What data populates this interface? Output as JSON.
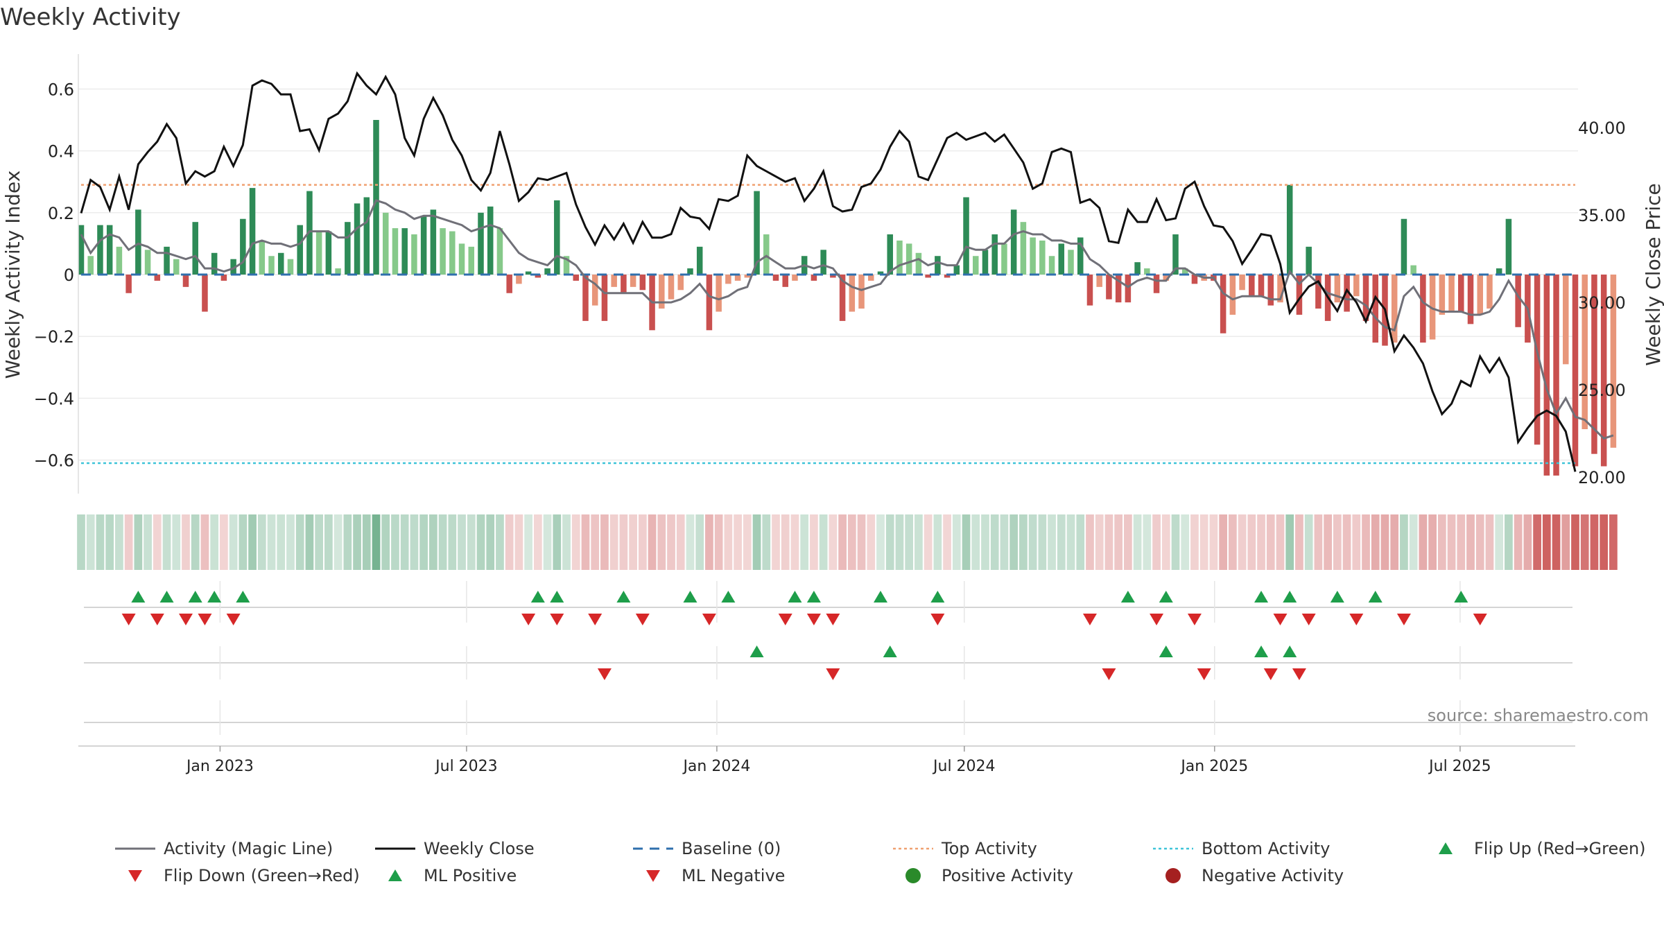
{
  "chart_data": {
    "type": "bar",
    "title": "Weekly Activity",
    "ylabel": "Weekly Activity Index",
    "y2label": "Weekly Close Price",
    "ylim": [
      -0.72,
      0.72
    ],
    "y2lim": [
      19.5,
      44.5
    ],
    "yticks": [
      0.6,
      0.4,
      0.2,
      0,
      -0.2,
      -0.4,
      -0.6
    ],
    "ytick_labels": [
      "0.6",
      "0.4",
      "0.2",
      "0",
      "−0.2",
      "−0.4",
      "−0.6"
    ],
    "y2ticks": [
      40,
      35,
      30,
      25,
      20
    ],
    "y2tick_labels": [
      "40.00",
      "35.00",
      "30.00",
      "25.00",
      "20.00"
    ],
    "x_start_week": 0,
    "x_end_week": 157,
    "xticks": [
      {
        "label": "Jan 2023",
        "week": 14.6
      },
      {
        "label": "Jul 2023",
        "week": 40.5
      },
      {
        "label": "Jan 2024",
        "week": 66.8
      },
      {
        "label": "Jul 2024",
        "week": 92.8
      },
      {
        "label": "Jan 2025",
        "week": 119.1
      },
      {
        "label": "Jul 2025",
        "week": 144.9
      }
    ],
    "top_activity": 0.29,
    "bottom_activity": -0.61,
    "baseline": 0,
    "activity": [
      0.16,
      0.06,
      0.16,
      0.16,
      0.09,
      -0.06,
      0.21,
      0.08,
      -0.02,
      0.09,
      0.05,
      -0.04,
      0.17,
      -0.12,
      0.07,
      -0.02,
      0.05,
      0.18,
      0.28,
      0.11,
      0.06,
      0.07,
      0.05,
      0.16,
      0.27,
      0.14,
      0.14,
      0.02,
      0.17,
      0.23,
      0.25,
      0.5,
      0.2,
      0.15,
      0.15,
      0.13,
      0.19,
      0.21,
      0.15,
      0.14,
      0.1,
      0.09,
      0.2,
      0.22,
      0.15,
      -0.06,
      -0.03,
      0.01,
      -0.01,
      0.02,
      0.24,
      0.06,
      -0.02,
      -0.15,
      -0.1,
      -0.15,
      -0.04,
      -0.06,
      -0.04,
      -0.05,
      -0.18,
      -0.11,
      -0.08,
      -0.05,
      0.02,
      0.09,
      -0.18,
      -0.12,
      -0.03,
      -0.02,
      -0.01,
      0.27,
      0.13,
      -0.02,
      -0.04,
      -0.02,
      0.06,
      -0.02,
      0.08,
      -0.01,
      -0.15,
      -0.12,
      -0.11,
      -0.02,
      0.01,
      0.13,
      0.11,
      0.1,
      0.07,
      -0.01,
      0.06,
      -0.01,
      0.03,
      0.25,
      0.06,
      0.08,
      0.13,
      0.1,
      0.21,
      0.17,
      0.12,
      0.11,
      0.06,
      0.1,
      0.08,
      0.12,
      -0.1,
      -0.04,
      -0.08,
      -0.09,
      -0.09,
      0.04,
      0.02,
      -0.06,
      -0.02,
      0.13,
      0.02,
      -0.03,
      -0.02,
      -0.02,
      -0.19,
      -0.13,
      -0.05,
      -0.07,
      -0.07,
      -0.1,
      -0.09,
      0.29,
      -0.13,
      0.09,
      -0.11,
      -0.15,
      -0.09,
      -0.12,
      -0.07,
      -0.15,
      -0.22,
      -0.23,
      -0.22,
      0.18,
      0.03,
      -0.22,
      -0.21,
      -0.13,
      -0.12,
      -0.12,
      -0.16,
      -0.13,
      -0.11,
      0.02,
      0.18,
      -0.17,
      -0.22,
      -0.55,
      -0.65,
      -0.65,
      -0.29,
      -0.62,
      -0.5,
      -0.58,
      -0.62,
      -0.56
    ],
    "weekly_close": [
      35.1,
      37.0,
      36.6,
      35.3,
      37.2,
      35.3,
      37.9,
      38.6,
      39.2,
      40.2,
      39.4,
      36.8,
      37.5,
      37.2,
      37.5,
      38.9,
      37.8,
      39.0,
      42.4,
      42.7,
      42.5,
      41.9,
      41.9,
      39.8,
      39.9,
      38.7,
      40.5,
      40.8,
      41.5,
      43.1,
      42.4,
      41.9,
      42.9,
      41.9,
      39.4,
      38.4,
      40.5,
      41.7,
      40.7,
      39.3,
      38.4,
      37.0,
      36.4,
      37.4,
      39.8,
      37.9,
      35.8,
      36.3,
      37.1,
      37.0,
      37.2,
      37.4,
      35.6,
      34.3,
      33.3,
      34.4,
      33.6,
      34.5,
      33.4,
      34.6,
      33.7,
      33.7,
      33.9,
      35.4,
      34.9,
      34.8,
      34.2,
      35.9,
      35.8,
      36.1,
      38.4,
      37.8,
      37.5,
      37.2,
      36.9,
      37.1,
      35.8,
      36.5,
      37.5,
      35.5,
      35.2,
      35.3,
      36.6,
      36.8,
      37.6,
      38.9,
      39.8,
      39.2,
      37.2,
      37.0,
      38.2,
      39.4,
      39.7,
      39.3,
      39.5,
      39.7,
      39.2,
      39.6,
      38.8,
      38.0,
      36.5,
      36.8,
      38.6,
      38.8,
      38.6,
      35.7,
      35.9,
      35.4,
      33.5,
      33.4,
      35.3,
      34.6,
      34.6,
      35.9,
      34.7,
      34.8,
      36.5,
      36.9,
      35.5,
      34.4,
      34.3,
      33.5,
      32.2,
      33.0,
      33.9,
      33.8,
      32.2,
      29.4,
      30.2,
      30.9,
      31.2,
      30.3,
      29.5,
      30.7,
      30.0,
      28.9,
      30.3,
      29.6,
      27.2,
      28.1,
      27.4,
      26.5,
      24.9,
      23.6,
      24.2,
      25.5,
      25.2,
      26.9,
      26.0,
      26.8,
      25.7,
      22.0,
      22.8,
      23.5,
      23.8,
      23.5,
      22.6,
      20.3
    ],
    "magic_line": [
      0.13,
      0.07,
      0.11,
      0.13,
      0.12,
      0.08,
      0.1,
      0.09,
      0.07,
      0.07,
      0.06,
      0.05,
      0.06,
      0.02,
      0.02,
      0.01,
      0.02,
      0.04,
      0.1,
      0.11,
      0.1,
      0.1,
      0.09,
      0.1,
      0.14,
      0.14,
      0.14,
      0.12,
      0.12,
      0.15,
      0.17,
      0.24,
      0.23,
      0.21,
      0.2,
      0.18,
      0.19,
      0.19,
      0.18,
      0.17,
      0.16,
      0.14,
      0.15,
      0.16,
      0.15,
      0.11,
      0.07,
      0.05,
      0.04,
      0.03,
      0.06,
      0.05,
      0.03,
      -0.01,
      -0.03,
      -0.06,
      -0.06,
      -0.06,
      -0.06,
      -0.06,
      -0.09,
      -0.09,
      -0.09,
      -0.08,
      -0.06,
      -0.03,
      -0.07,
      -0.08,
      -0.07,
      -0.05,
      -0.04,
      0.04,
      0.06,
      0.04,
      0.02,
      0.02,
      0.03,
      0.02,
      0.03,
      0.02,
      -0.02,
      -0.04,
      -0.05,
      -0.04,
      -0.03,
      0.01,
      0.03,
      0.04,
      0.05,
      0.03,
      0.04,
      0.03,
      0.03,
      0.09,
      0.08,
      0.08,
      0.1,
      0.1,
      0.13,
      0.14,
      0.13,
      0.13,
      0.11,
      0.11,
      0.1,
      0.1,
      0.05,
      0.03,
      0.0,
      -0.02,
      -0.04,
      -0.02,
      -0.01,
      -0.02,
      -0.02,
      0.02,
      0.02,
      0.0,
      -0.01,
      -0.01,
      -0.06,
      -0.08,
      -0.07,
      -0.07,
      -0.07,
      -0.08,
      -0.08,
      0.01,
      -0.03,
      0.0,
      -0.03,
      -0.06,
      -0.07,
      -0.08,
      -0.08,
      -0.1,
      -0.14,
      -0.17,
      -0.18,
      -0.07,
      -0.04,
      -0.09,
      -0.11,
      -0.12,
      -0.12,
      -0.12,
      -0.13,
      -0.13,
      -0.12,
      -0.08,
      -0.02,
      -0.07,
      -0.11,
      -0.25,
      -0.37,
      -0.45,
      -0.4,
      -0.46,
      -0.47,
      -0.5,
      -0.53,
      -0.52
    ],
    "flip_up_weeks": [
      6,
      9,
      12,
      14,
      17,
      48,
      50,
      57,
      64,
      68,
      75,
      77,
      84,
      90,
      110,
      114,
      124,
      127,
      132,
      136,
      145
    ],
    "flip_down_weeks": [
      5,
      8,
      11,
      13,
      16,
      47,
      50,
      54,
      59,
      66,
      74,
      77,
      79,
      90,
      106,
      113,
      117,
      126,
      129,
      134,
      139,
      147
    ],
    "ml_positive_weeks": [
      71,
      85,
      114,
      124,
      127
    ],
    "ml_negative_weeks": [
      55,
      79,
      108,
      118,
      125,
      128
    ],
    "source": "source: sharemaestro.com",
    "legend": [
      "Activity (Magic Line)",
      "Weekly Close",
      "Baseline (0)",
      "Top Activity",
      "Bottom Activity",
      "Flip Up (Red→Green)",
      "Flip Down (Green→Red)",
      "ML Positive",
      "ML Negative",
      "Positive Activity",
      "Negative Activity"
    ],
    "colors": {
      "pos_strong": "#2e8b57",
      "pos_light": "#86c98a",
      "neg_strong": "#c9504f",
      "neg_light": "#e8967a",
      "magic_line": "#707078",
      "close": "#111111",
      "baseline": "#2f6fad",
      "top": "#f0a070",
      "bottom": "#3ec4d8",
      "flip_up": "#1e9e4a",
      "flip_down": "#d62728",
      "positive_dot": "#2a8a2a",
      "negative_dot": "#a52020",
      "axis_text": "#222222",
      "grid": "#ececec"
    }
  }
}
